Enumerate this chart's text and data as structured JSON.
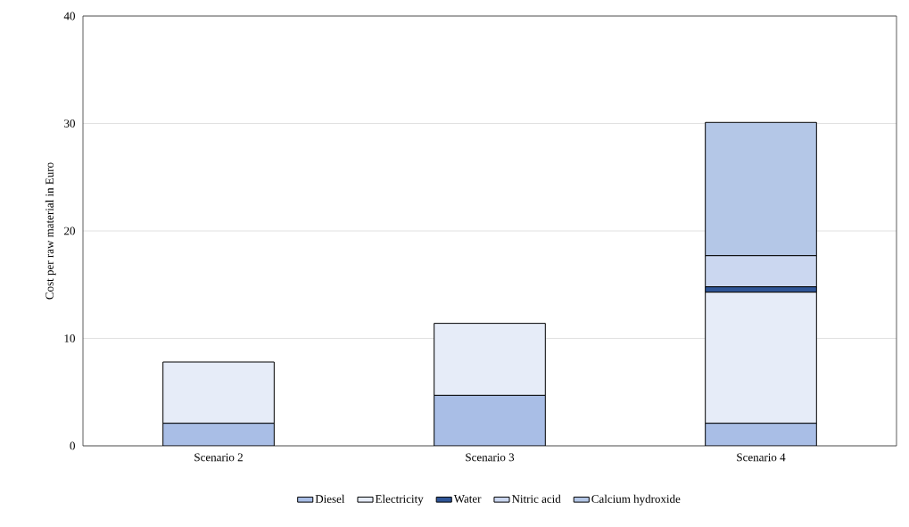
{
  "chart_data": {
    "type": "bar",
    "stacked": true,
    "ylabel": "Cost per raw material in Euro",
    "categories": [
      "Scenario 2",
      "Scenario 3",
      "Scenario 4"
    ],
    "series": [
      {
        "name": "Diesel",
        "color": "#a9bee6",
        "values": [
          2.1,
          4.7,
          2.1
        ]
      },
      {
        "name": "Electricity",
        "color": "#e6ecf8",
        "values": [
          5.7,
          6.7,
          12.2
        ]
      },
      {
        "name": "Water",
        "color": "#2f5597",
        "values": [
          null,
          null,
          0.5
        ]
      },
      {
        "name": "Nitric acid",
        "color": "#cbd7f0",
        "values": [
          null,
          null,
          2.9
        ]
      },
      {
        "name": "Calcium hydroxide",
        "color": "#b4c7e7",
        "values": [
          null,
          null,
          12.4
        ]
      }
    ],
    "ylim": [
      0,
      40
    ],
    "yticks": [
      0,
      10,
      20,
      30,
      40
    ],
    "grid": "y",
    "legend": "bottom"
  }
}
